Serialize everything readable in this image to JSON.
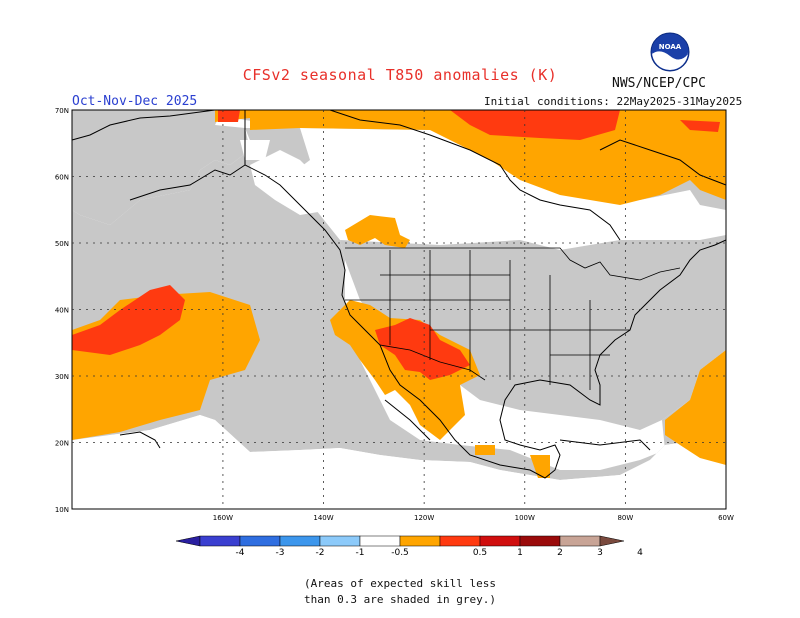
{
  "header": {
    "title": "CFSv2 seasonal T850 anomalies (K)",
    "agency": "NWS/NCEP/CPC",
    "period": "Oct-Nov-Dec 2025",
    "initial_conditions": "Initial conditions: 22May2025-31May2025"
  },
  "map": {
    "lat_range": [
      10,
      70
    ],
    "lon_range": [
      -190,
      -60
    ],
    "lat_ticks": [
      "70N",
      "60N",
      "50N",
      "40N",
      "30N",
      "20N",
      "10N"
    ],
    "lon_ticks": [
      "160W",
      "140W",
      "120W",
      "100W",
      "80W",
      "60W"
    ],
    "skill_mask_color": "#c8c8c8",
    "anomaly_regions": [
      {
        "name": "arctic-canada",
        "category": "0.5-1",
        "color": "#ffa500"
      },
      {
        "name": "arctic-warm-core",
        "category": "1-2",
        "color": "#ff3a10"
      },
      {
        "name": "north-pacific",
        "category": "0.5-1",
        "color": "#ffa500"
      },
      {
        "name": "north-pacific-core",
        "category": "1-2",
        "color": "#ff3a10"
      },
      {
        "name": "southwest-us-mexico",
        "category": "0.5-1",
        "color": "#ffa500"
      },
      {
        "name": "southwest-core",
        "category": "1-2",
        "color": "#ff3a10"
      },
      {
        "name": "caribbean-atlantic",
        "category": "0.5-1",
        "color": "#ffa500"
      }
    ]
  },
  "colorbar": {
    "labels": [
      "-4",
      "-3",
      "-2",
      "-1",
      "-0.5",
      "0.5",
      "1",
      "2",
      "3",
      "4"
    ],
    "colors": [
      "#2a1fa0",
      "#3a3fd0",
      "#2f6ee0",
      "#3c96ec",
      "#8ccafa",
      "#ffffff",
      "#ffa500",
      "#ff3a10",
      "#d00e0e",
      "#9a0a0a",
      "#c8a496",
      "#7a4a3e"
    ]
  },
  "footnote": {
    "line1": "(Areas of expected skill less",
    "line2": "than 0.3 are shaded in grey.)"
  }
}
